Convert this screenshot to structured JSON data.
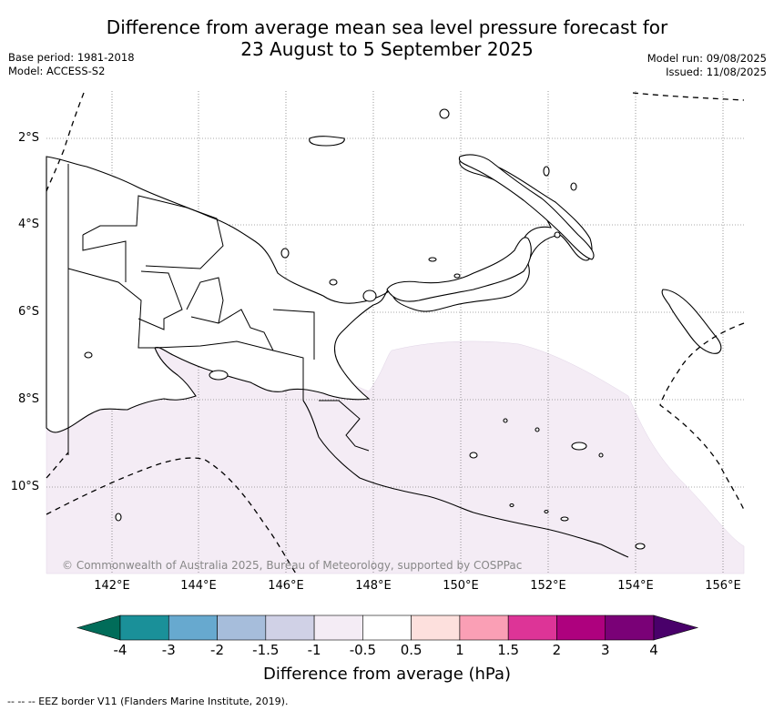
{
  "title": {
    "line1": "Difference from average mean sea level pressure forecast for",
    "line2": "23 August to 5 September 2025"
  },
  "meta": {
    "base_period": "Base period: 1981-2018",
    "model": "Model: ACCESS-S2",
    "model_run": "Model run: 09/08/2025",
    "issued": "Issued: 11/08/2025"
  },
  "map": {
    "lat_labels": [
      "2°S",
      "4°S",
      "6°S",
      "8°S",
      "10°S"
    ],
    "lon_labels": [
      "142°E",
      "144°E",
      "146°E",
      "148°E",
      "150°E",
      "152°E",
      "154°E",
      "156°E"
    ],
    "copyright": "© Commonwealth of Australia 2025, Bureau of Meteorology, supported by COSPPac",
    "shaded_anomaly_color": "#f4ecf5",
    "land_outline_color": "#000000"
  },
  "colorbar": {
    "title": "Difference from average (hPa)",
    "labels": [
      "-4",
      "-3",
      "-2",
      "-1.5",
      "-1",
      "-0.5",
      "0.5",
      "1",
      "1.5",
      "2",
      "3",
      "4"
    ],
    "colors": [
      "#1a9099",
      "#67a9cf",
      "#a6bddb",
      "#d0d1e6",
      "#f4ecf5",
      "#ffffff",
      "#fde0dd",
      "#fa9fb5",
      "#dd3497",
      "#ae017e",
      "#7a0177"
    ],
    "under_color": "#016c59",
    "over_color": "#49006a"
  },
  "footnote": "--  --  -- EEZ border V11 (Flanders Marine Institute, 2019)."
}
